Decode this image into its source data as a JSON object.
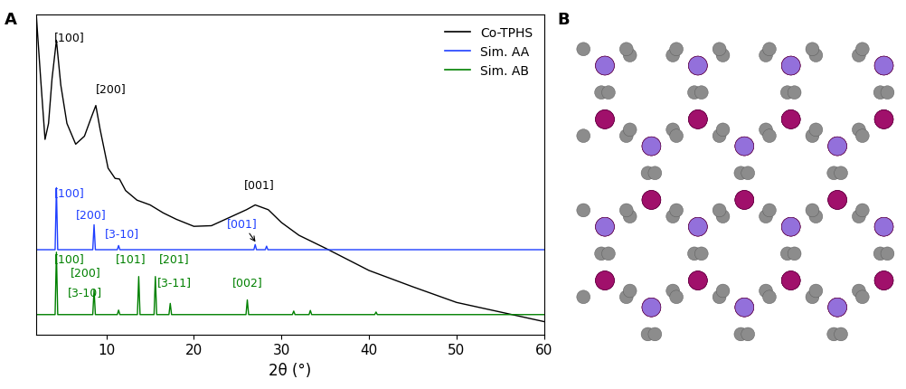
{
  "panel_labels": [
    "A",
    "B"
  ],
  "chart_data": {
    "type": "line",
    "xlabel": "2θ (°)",
    "xlim": [
      2,
      60
    ],
    "xticks": [
      10,
      20,
      30,
      40,
      50,
      60
    ],
    "ylim": [
      0,
      100
    ],
    "tick_labels": "x",
    "legend": "upper right",
    "series": [
      {
        "name": "Co-TPHS",
        "color": "#000000",
        "x": [
          2.0,
          2.5,
          3.0,
          3.4,
          3.8,
          4.3,
          4.8,
          5.5,
          6.5,
          7.5,
          8.3,
          8.8,
          9.3,
          10.2,
          11.0,
          11.5,
          12.2,
          13.5,
          15.0,
          16.5,
          18.0,
          20.0,
          22.0,
          24.0,
          26.0,
          27.0,
          28.5,
          30.0,
          32.0,
          35.0,
          40.0,
          45.0,
          50.0,
          55.0,
          60.0
        ],
        "values": [
          100,
          80,
          61,
          66,
          80,
          92,
          78,
          66,
          59.5,
          62,
          68,
          71.6,
          64,
          52,
          48.8,
          48.6,
          45,
          42,
          40.5,
          38,
          36,
          33.8,
          34,
          36.5,
          39,
          40.5,
          39,
          35,
          31,
          27,
          20,
          14.9,
          10,
          7,
          4
        ]
      },
      {
        "name": "Sim. AA",
        "color": "#1f3fff",
        "x": [
          2.0,
          4.15,
          4.3,
          4.45,
          8.45,
          8.6,
          8.75,
          11.25,
          11.4,
          11.55,
          26.85,
          27.0,
          27.15,
          28.15,
          28.3,
          28.45,
          60.0
        ],
        "values": [
          26.5,
          26.5,
          45.9,
          26.5,
          26.5,
          34.3,
          26.5,
          26.5,
          27.8,
          26.5,
          26.5,
          28.1,
          26.5,
          26.5,
          27.6,
          26.5,
          26.5
        ]
      },
      {
        "name": "Sim. AB",
        "color": "#008000",
        "x": [
          2.0,
          4.15,
          4.3,
          4.45,
          8.45,
          8.6,
          8.75,
          11.25,
          11.4,
          11.55,
          13.55,
          13.7,
          13.85,
          15.45,
          15.6,
          15.75,
          17.15,
          17.3,
          17.45,
          25.95,
          26.1,
          26.25,
          31.25,
          31.4,
          31.55,
          33.15,
          33.3,
          33.45,
          40.65,
          40.8,
          40.95,
          60.0
        ],
        "values": [
          6.2,
          6.2,
          25.7,
          6.2,
          6.2,
          14.0,
          6.2,
          6.2,
          7.6,
          6.2,
          6.2,
          18.1,
          6.2,
          6.2,
          18.1,
          6.2,
          6.2,
          9.7,
          6.2,
          6.2,
          10.8,
          6.2,
          6.2,
          7.3,
          6.2,
          6.2,
          7.5,
          6.2,
          6.2,
          7.0,
          6.2,
          6.2
        ]
      }
    ],
    "annotations": [
      {
        "text": "[100]",
        "x": 5.8,
        "y": 93,
        "color": "#000000"
      },
      {
        "text": "[200]",
        "x": 10.5,
        "y": 77,
        "color": "#000000"
      },
      {
        "text": "[001]",
        "x": 27.5,
        "y": 47,
        "color": "#000000"
      },
      {
        "text": "[100]",
        "x": 5.8,
        "y": 44.6,
        "color": "#1f3fff"
      },
      {
        "text": "[200]",
        "x": 8.3,
        "y": 37.8,
        "color": "#1f3fff"
      },
      {
        "text": "[3-10]",
        "x": 11.8,
        "y": 31.6,
        "color": "#1f3fff"
      },
      {
        "text": "[001]",
        "x": 25.5,
        "y": 33,
        "color": "#1f3fff",
        "arrow_to": [
          27.2,
          28.3
        ]
      },
      {
        "text": "[100]",
        "x": 5.8,
        "y": 23.8,
        "color": "#008000"
      },
      {
        "text": "[200]",
        "x": 7.6,
        "y": 19.7,
        "color": "#008000"
      },
      {
        "text": "[3-10]",
        "x": 7.6,
        "y": 13.2,
        "color": "#008000"
      },
      {
        "text": "[101]",
        "x": 12.8,
        "y": 23.8,
        "color": "#008000"
      },
      {
        "text": "[201]",
        "x": 17.8,
        "y": 23.8,
        "color": "#008000"
      },
      {
        "text": "[3-11]",
        "x": 17.8,
        "y": 16.5,
        "color": "#008000"
      },
      {
        "text": "[002]",
        "x": 26.1,
        "y": 16.5,
        "color": "#008000"
      }
    ]
  }
}
